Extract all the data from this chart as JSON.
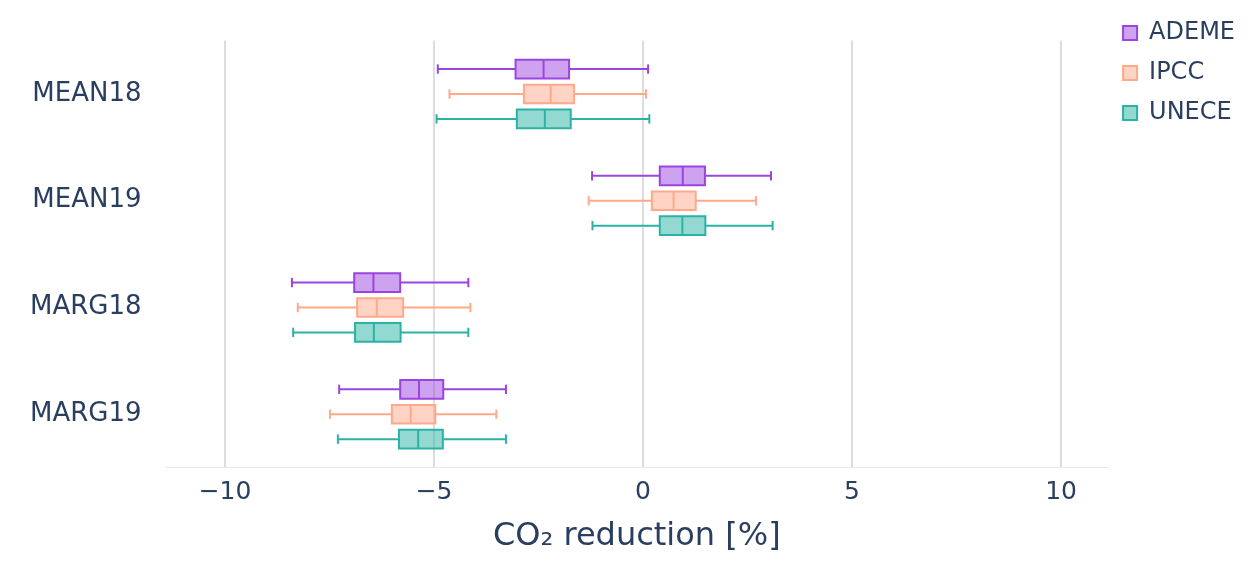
{
  "chart_data": {
    "type": "box",
    "orientation": "horizontal",
    "categories": [
      "MEAN18",
      "MEAN19",
      "MARG18",
      "MARG19"
    ],
    "xlabel": "CO₂ reduction [%]",
    "xlim": [
      -11.4,
      11.1
    ],
    "xticks": [
      {
        "value": -10,
        "label": "−10"
      },
      {
        "value": -5,
        "label": "−5"
      },
      0,
      5,
      10
    ],
    "grid": "x",
    "legend": "top right",
    "series": [
      {
        "name": "ADEME",
        "color": "#9b45e0",
        "boxes": [
          {
            "low": -4.91,
            "q1": -3.05,
            "median": -2.38,
            "q3": -1.77,
            "high": 0.12
          },
          {
            "low": -1.22,
            "q1": 0.4,
            "median": 0.95,
            "q3": 1.48,
            "high": 3.06
          },
          {
            "low": -8.4,
            "q1": -6.91,
            "median": -6.45,
            "q3": -5.81,
            "high": -4.18
          },
          {
            "low": -7.27,
            "q1": -5.81,
            "median": -5.36,
            "q3": -4.78,
            "high": -3.28
          }
        ]
      },
      {
        "name": "IPCC",
        "color": "#ffa98a",
        "boxes": [
          {
            "low": -4.63,
            "q1": -2.85,
            "median": -2.21,
            "q3": -1.65,
            "high": 0.07
          },
          {
            "low": -1.3,
            "q1": 0.21,
            "median": 0.73,
            "q3": 1.26,
            "high": 2.7
          },
          {
            "low": -8.26,
            "q1": -6.84,
            "median": -6.37,
            "q3": -5.74,
            "high": -4.13
          },
          {
            "low": -7.49,
            "q1": -6.01,
            "median": -5.56,
            "q3": -4.97,
            "high": -3.51
          }
        ]
      },
      {
        "name": "UNECE",
        "color": "#2ab3a4",
        "boxes": [
          {
            "low": -4.94,
            "q1": -3.02,
            "median": -2.35,
            "q3": -1.73,
            "high": 0.15
          },
          {
            "low": -1.21,
            "q1": 0.4,
            "median": 0.94,
            "q3": 1.49,
            "high": 3.1
          },
          {
            "low": -8.37,
            "q1": -6.89,
            "median": -6.44,
            "q3": -5.8,
            "high": -4.18
          },
          {
            "low": -7.3,
            "q1": -5.84,
            "median": -5.38,
            "q3": -4.79,
            "high": -3.28
          }
        ]
      }
    ]
  }
}
